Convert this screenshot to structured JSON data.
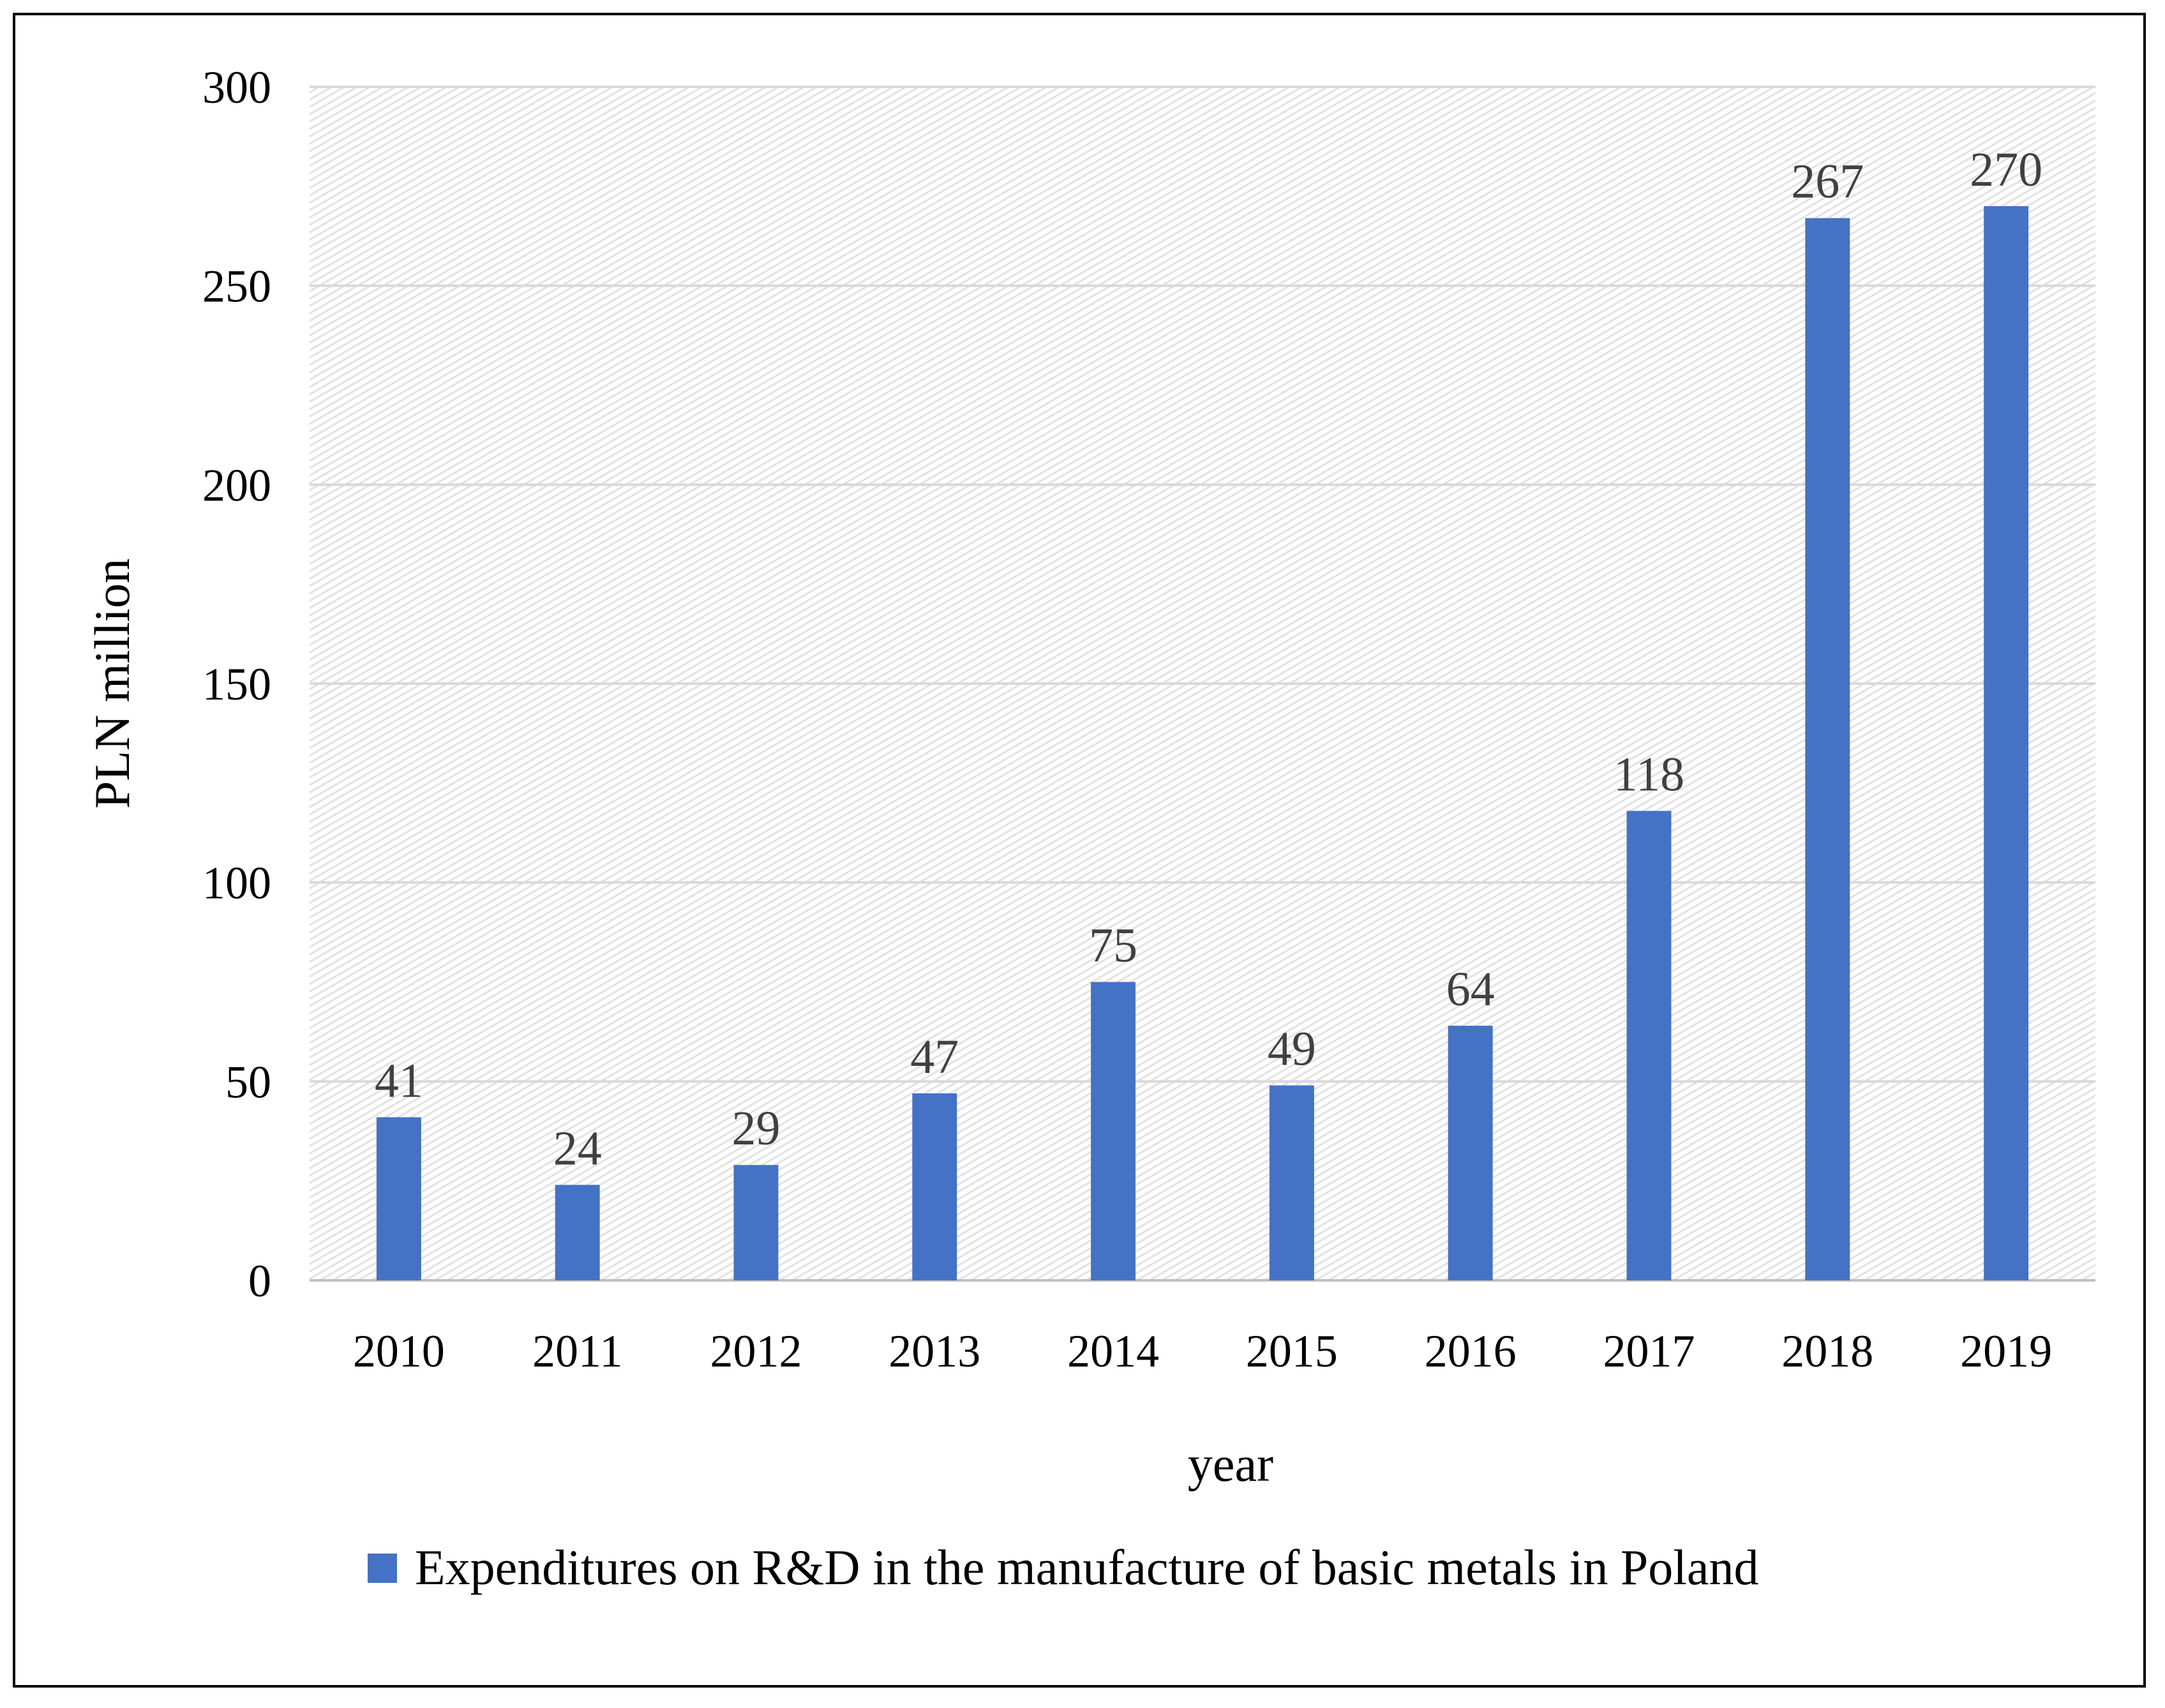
{
  "chart_data": {
    "type": "bar",
    "title": "",
    "xlabel": "year",
    "ylabel": "PLN million",
    "ylim": [
      0,
      300
    ],
    "yticks": [
      0,
      50,
      100,
      150,
      200,
      250,
      300
    ],
    "grid": true,
    "legend_position": "bottom",
    "categories": [
      "2010",
      "2011",
      "2012",
      "2013",
      "2014",
      "2015",
      "2016",
      "2017",
      "2018",
      "2019"
    ],
    "series": [
      {
        "name": "Expenditures on R&D in the manufacture of basic metals in Poland",
        "color": "#4472c4",
        "values": [
          41,
          24,
          29,
          47,
          75,
          49,
          64,
          118,
          267,
          270
        ],
        "labels": [
          "41",
          "24",
          "29",
          "47",
          "75",
          "49",
          "64",
          "118",
          "267",
          "270"
        ]
      }
    ]
  }
}
